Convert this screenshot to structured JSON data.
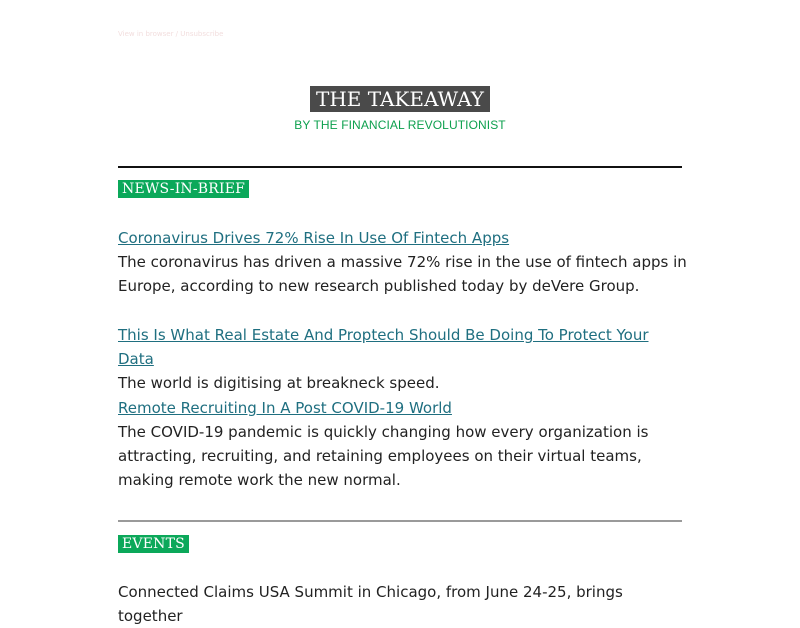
{
  "preview_link": "View in browser / Unsubscribe",
  "masthead": {
    "title": "THE TAKEAWAY",
    "byline": "BY THE FINANCIAL REVOLUTIONIST"
  },
  "news": {
    "section_label": "NEWS-IN-BRIEF",
    "items": [
      {
        "headline": "Coronavirus Drives 72% Rise In Use Of Fintech Apps",
        "summary": "The coronavirus has driven a massive 72% rise in the use of fintech apps in Europe, according to new research published today by deVere Group."
      },
      {
        "headline": "This Is What Real Estate And Proptech Should Be Doing To Protect Your Data",
        "summary": "The world is digitising at breakneck speed."
      },
      {
        "headline": "Remote Recruiting In A Post COVID-19 World",
        "summary": "The COVID-19 pandemic is quickly changing how every organization is attracting, recruiting, and retaining employees on their virtual teams, making remote work the new normal."
      }
    ]
  },
  "events": {
    "section_label": "EVENTS",
    "intro": "Connected Claims USA Summit in Chicago, from June 24-25, brings together"
  },
  "colors": {
    "accent_green": "#0ba85a",
    "link_teal": "#1f6f80",
    "title_bg": "#4a4a4a"
  }
}
